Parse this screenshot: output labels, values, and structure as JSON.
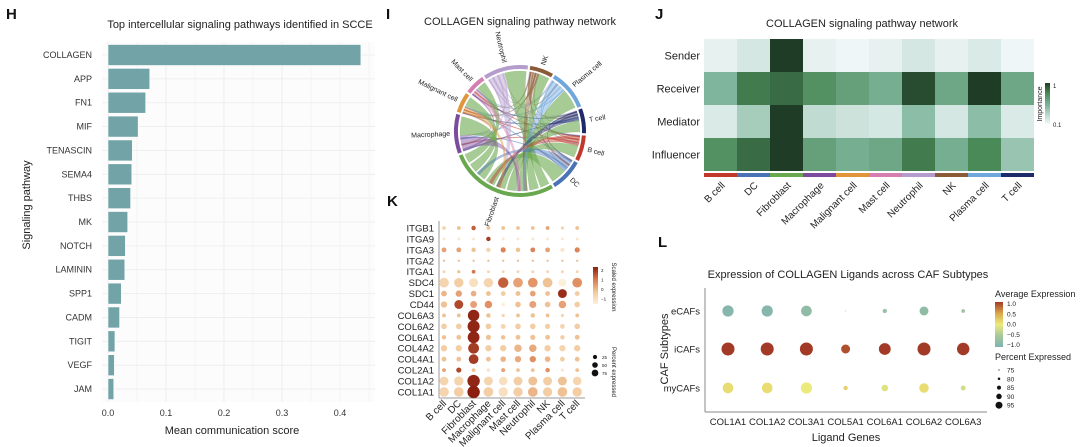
{
  "panels": {
    "H": "H",
    "I": "I",
    "J": "J",
    "K": "K",
    "L": "L"
  },
  "chart_data": [
    {
      "id": "H",
      "type": "bar",
      "orientation": "horizontal",
      "title": "Top intercellular signaling pathways identified in SCCE",
      "xlabel": "Mean communication score",
      "ylabel": "Signaling pathway",
      "categories": [
        "COLLAGEN",
        "APP",
        "FN1",
        "MIF",
        "TENASCIN",
        "SEMA4",
        "THBS",
        "MK",
        "NOTCH",
        "LAMININ",
        "SPP1",
        "CADM",
        "TIGIT",
        "VEGF",
        "JAM"
      ],
      "values": [
        0.436,
        0.072,
        0.065,
        0.052,
        0.042,
        0.041,
        0.039,
        0.034,
        0.03,
        0.029,
        0.023,
        0.02,
        0.012,
        0.011,
        0.01
      ],
      "xticks": [
        "0.0",
        "0.1",
        "0.2",
        "0.3",
        "0.4"
      ],
      "xlim": [
        0,
        0.46
      ],
      "bar_color": "#72a3a6",
      "grid": true
    },
    {
      "id": "I",
      "type": "chord",
      "title": "COLLAGEN signaling pathway network",
      "sectors": [
        {
          "name": "Neutrophil",
          "start": 327,
          "end": 367,
          "color": "#b49ccd"
        },
        {
          "name": "NK",
          "start": 369,
          "end": 390,
          "color": "#8b5a36"
        },
        {
          "name": "Plasma cell",
          "start": 392,
          "end": 428,
          "color": "#6fa7dc"
        },
        {
          "name": "T cell",
          "start": 430,
          "end": 452,
          "color": "#1f2a6b"
        },
        {
          "name": "B cell",
          "start": 454,
          "end": 477,
          "color": "#c0392b"
        },
        {
          "name": "DC",
          "start": 479,
          "end": 508,
          "color": "#4a73b5"
        },
        {
          "name": "Fibroblast",
          "start": 510,
          "end": 608,
          "color": "#6aa84f"
        },
        {
          "name": "Macrophage",
          "start": 610,
          "end": 645,
          "color": "#7d4b9e"
        },
        {
          "name": "Malignant cell",
          "start": 647,
          "end": 665,
          "color": "#e0953a"
        },
        {
          "name": "Mast cell",
          "start": 667,
          "end": 685,
          "color": "#d47fb0"
        }
      ]
    },
    {
      "id": "J",
      "type": "heatmap",
      "title": "COLLAGEN signaling pathway network",
      "rows": [
        "Sender",
        "Receiver",
        "Mediator",
        "Influencer"
      ],
      "columns": [
        "B cell",
        "DC",
        "Fibroblast",
        "Macrophage",
        "Malignant cell",
        "Mast cell",
        "Neutrophil",
        "NK",
        "Plasma cell",
        "T cell"
      ],
      "column_colors": [
        "#c0392b",
        "#4a73b5",
        "#6aa84f",
        "#7d4b9e",
        "#e0953a",
        "#d47fb0",
        "#b49ccd",
        "#8b5a36",
        "#6fa7dc",
        "#1f2a6b"
      ],
      "values": [
        [
          0.05,
          0.12,
          1.0,
          0.05,
          0.02,
          0.05,
          0.12,
          0.05,
          0.1,
          0.02
        ],
        [
          0.45,
          0.8,
          0.85,
          0.7,
          0.6,
          0.5,
          0.95,
          0.55,
          1.0,
          0.55
        ],
        [
          0.1,
          0.3,
          1.0,
          0.2,
          0.15,
          0.12,
          0.4,
          0.12,
          0.4,
          0.1
        ],
        [
          0.7,
          0.85,
          1.0,
          0.6,
          0.5,
          0.55,
          0.8,
          0.5,
          0.75,
          0.35
        ]
      ],
      "legend_title": "Importance",
      "legend_labels": [
        "1",
        "0.1"
      ]
    },
    {
      "id": "K",
      "type": "dotplot",
      "rows": [
        "ITGB1",
        "ITGA9",
        "ITGA3",
        "ITGA2",
        "ITGA1",
        "SDC4",
        "SDC1",
        "CD44",
        "COL6A3",
        "COL6A2",
        "COL6A1",
        "COL4A2",
        "COL4A1",
        "COL2A1",
        "COL1A2",
        "COL1A1"
      ],
      "columns": [
        "B cell",
        "DC",
        "Fibroblast",
        "Macrophage",
        "Malignant cell",
        "Mast cell",
        "Neutrophil",
        "NK",
        "Plasma cell",
        "T cell"
      ],
      "expression": [
        [
          -0.5,
          0,
          1.5,
          0,
          0,
          0,
          0,
          0.5,
          -0.5,
          0
        ],
        [
          -1,
          -1,
          -1,
          2,
          -1,
          -1,
          -1,
          -1,
          -1,
          -1
        ],
        [
          0.5,
          0.5,
          0,
          -0.5,
          1,
          0,
          1,
          0.5,
          -1,
          1
        ],
        [
          0,
          0,
          0,
          0,
          0,
          0,
          0,
          0,
          0,
          0
        ],
        [
          -0.5,
          0,
          1.2,
          -0.5,
          -0.5,
          -0.5,
          -0.5,
          -0.5,
          -0.5,
          -0.5
        ],
        [
          -0.5,
          -0.3,
          -0.8,
          -0.5,
          1.5,
          0.5,
          0.7,
          0,
          -1.3,
          0.8
        ],
        [
          0.2,
          0.5,
          0.3,
          0,
          -0.3,
          0,
          0.5,
          0,
          2.2,
          -0.3
        ],
        [
          0,
          1.8,
          0.5,
          0.8,
          -1.3,
          0,
          0.5,
          0,
          0.5,
          -0.3
        ],
        [
          0,
          0,
          2.3,
          0,
          -0.5,
          0,
          0,
          0,
          -0.5,
          0
        ],
        [
          -0.3,
          -0.3,
          2.3,
          -0.3,
          -0.5,
          -0.3,
          -0.3,
          -0.3,
          -0.5,
          -0.3
        ],
        [
          0,
          0,
          2.3,
          0,
          0,
          0,
          0,
          0,
          -0.3,
          0
        ],
        [
          -0.3,
          -0.3,
          2,
          -0.3,
          -0.3,
          0.2,
          0.4,
          -0.3,
          -0.5,
          -0.3
        ],
        [
          0,
          0,
          2,
          0,
          0.2,
          0.4,
          0.8,
          0.2,
          -0.3,
          0
        ],
        [
          0.5,
          1.8,
          0,
          -0.8,
          0.5,
          0,
          0,
          0.8,
          -1,
          0
        ],
        [
          -0.5,
          -0.5,
          2.3,
          -0.5,
          -0.8,
          -0.3,
          0,
          -0.3,
          0,
          -0.5
        ],
        [
          -0.5,
          -0.3,
          2.4,
          -0.3,
          -0.8,
          -0.3,
          0.2,
          -0.3,
          0,
          -0.3
        ]
      ],
      "percent": [
        [
          5,
          5,
          8,
          5,
          5,
          5,
          5,
          5,
          3,
          5
        ],
        [
          2,
          2,
          2,
          8,
          2,
          2,
          2,
          2,
          2,
          2
        ],
        [
          10,
          10,
          8,
          8,
          12,
          8,
          10,
          10,
          6,
          12
        ],
        [
          1,
          1,
          1,
          1,
          1,
          1,
          1,
          1,
          1,
          1
        ],
        [
          2,
          3,
          5,
          2,
          2,
          2,
          2,
          2,
          2,
          2
        ],
        [
          55,
          50,
          45,
          50,
          65,
          55,
          55,
          55,
          35,
          55
        ],
        [
          15,
          20,
          15,
          10,
          10,
          10,
          15,
          10,
          45,
          10
        ],
        [
          20,
          45,
          25,
          30,
          5,
          15,
          25,
          15,
          30,
          15
        ],
        [
          5,
          5,
          80,
          8,
          3,
          5,
          8,
          5,
          3,
          5
        ],
        [
          15,
          15,
          90,
          15,
          10,
          15,
          15,
          12,
          10,
          15
        ],
        [
          8,
          10,
          85,
          12,
          8,
          10,
          12,
          10,
          8,
          10
        ],
        [
          20,
          20,
          70,
          20,
          20,
          30,
          30,
          20,
          20,
          20
        ],
        [
          10,
          10,
          55,
          10,
          15,
          20,
          20,
          15,
          10,
          10
        ],
        [
          5,
          12,
          5,
          3,
          6,
          5,
          5,
          8,
          3,
          5
        ],
        [
          45,
          50,
          95,
          45,
          40,
          45,
          45,
          45,
          45,
          40
        ],
        [
          55,
          55,
          95,
          55,
          50,
          50,
          55,
          50,
          55,
          50
        ]
      ],
      "color_legend_title": "Scaled expression",
      "color_legend_ticks": [
        "2",
        "1",
        "0",
        "−1"
      ],
      "size_legend_title": "Percent expressed",
      "size_legend_ticks": [
        "25",
        "50",
        "75"
      ]
    },
    {
      "id": "L",
      "type": "dotplot",
      "title": "Expression of COLLAGEN Ligands across CAF Subtypes",
      "xlabel": "Ligand Genes",
      "ylabel": "CAF Subtypes",
      "rows": [
        "eCAFs",
        "iCAFs",
        "myCAFs"
      ],
      "columns": [
        "COL1A1",
        "COL1A2",
        "COL3A1",
        "COL5A1",
        "COL6A1",
        "COL6A2",
        "COL6A3"
      ],
      "expression": [
        [
          -0.9,
          -0.9,
          -0.8,
          -0.6,
          -0.7,
          -0.8,
          -0.6
        ],
        [
          1.0,
          1.0,
          1.0,
          0.9,
          1.0,
          1.0,
          1.0
        ],
        [
          0.1,
          0.1,
          0.0,
          0.2,
          -0.1,
          0.1,
          -0.2
        ]
      ],
      "percent": [
        [
          92,
          92,
          91,
          74,
          80,
          88,
          79
        ],
        [
          95,
          95,
          95,
          88,
          93,
          95,
          94
        ],
        [
          91,
          91,
          92,
          80,
          84,
          89,
          81
        ]
      ],
      "color_legend_title": "Average Expression",
      "color_legend_ticks": [
        "1.0",
        "0.5",
        "0.0",
        "−0.5",
        "−1.0"
      ],
      "size_legend_title": "Percent Expressed",
      "size_legend_ticks": [
        "75",
        "80",
        "85",
        "90",
        "95"
      ]
    }
  ]
}
